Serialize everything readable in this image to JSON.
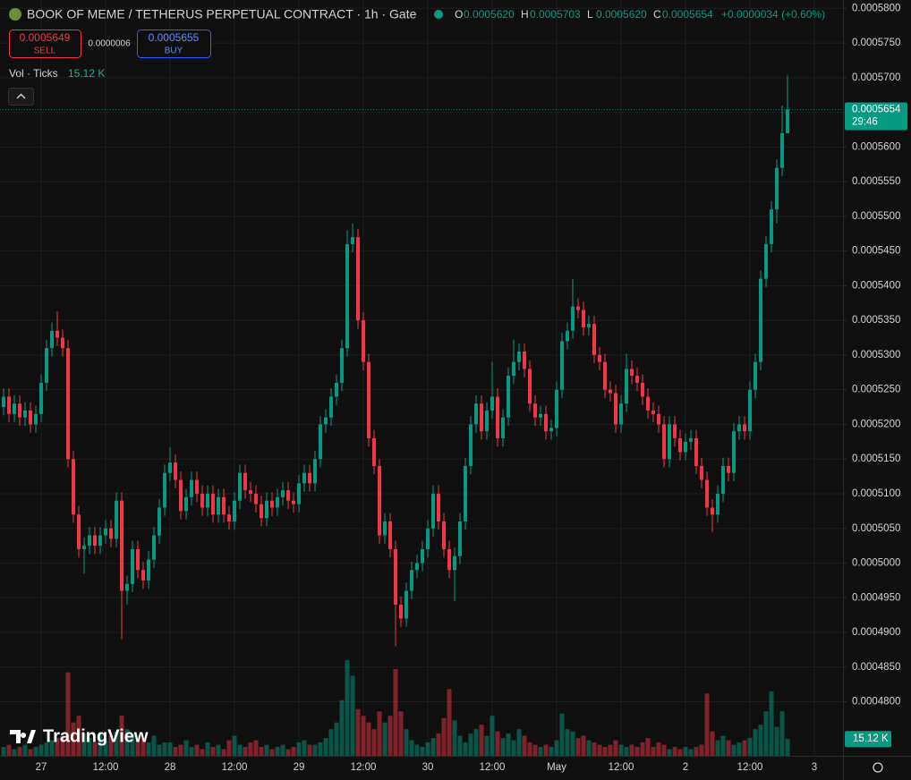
{
  "header": {
    "title": "BOOK OF MEME / TETHERUS PERPETUAL CONTRACT · 1h · Gate",
    "ohlc": [
      {
        "key": "O",
        "value": "0.0005620"
      },
      {
        "key": "H",
        "value": "0.0005703"
      },
      {
        "key": "L",
        "value": "0.0005620"
      },
      {
        "key": "C",
        "value": "0.0005654"
      }
    ],
    "change": "+0.0000034 (+0.60%)"
  },
  "trade_panel": {
    "sell_price": "0.0005649",
    "sell_label": "SELL",
    "spread": "0.0000006",
    "buy_price": "0.0005655",
    "buy_label": "BUY"
  },
  "indicator": {
    "title": "Vol · Ticks",
    "value": "15.12 K"
  },
  "branding": "TradingView",
  "chart_data": {
    "type": "candlestick",
    "up_color": "#089981",
    "down_color": "#f23645",
    "grid": true,
    "ylim": [
      0.0004722,
      0.0005812
    ],
    "yticks": [
      {
        "value": 0.00058,
        "label": "0.0005800"
      },
      {
        "value": 0.000575,
        "label": "0.0005750"
      },
      {
        "value": 0.00057,
        "label": "0.0005700"
      },
      {
        "value": 0.000565,
        "label": "0.0005650"
      },
      {
        "value": 0.00056,
        "label": "0.0005600"
      },
      {
        "value": 0.000555,
        "label": "0.0005550"
      },
      {
        "value": 0.00055,
        "label": "0.0005500"
      },
      {
        "value": 0.000545,
        "label": "0.0005450"
      },
      {
        "value": 0.00054,
        "label": "0.0005400"
      },
      {
        "value": 0.000535,
        "label": "0.0005350"
      },
      {
        "value": 0.00053,
        "label": "0.0005300"
      },
      {
        "value": 0.000525,
        "label": "0.0005250"
      },
      {
        "value": 0.00052,
        "label": "0.0005200"
      },
      {
        "value": 0.000515,
        "label": "0.0005150"
      },
      {
        "value": 0.00051,
        "label": "0.0005100"
      },
      {
        "value": 0.000505,
        "label": "0.0005050"
      },
      {
        "value": 0.0005,
        "label": "0.0005000"
      },
      {
        "value": 0.000495,
        "label": "0.0004950"
      },
      {
        "value": 0.00049,
        "label": "0.0004900"
      },
      {
        "value": 0.000485,
        "label": "0.0004850"
      },
      {
        "value": 0.00048,
        "label": "0.0004800"
      }
    ],
    "x_labels": [
      "27",
      "12:00",
      "28",
      "12:00",
      "29",
      "12:00",
      "30",
      "12:00",
      "May",
      "12:00",
      "2",
      "12:00",
      "3"
    ],
    "last_price_label": "0.0005654",
    "countdown": "29:46",
    "candles": [
      [
        0.0005225,
        0.0005252,
        0.0005213,
        0.000524
      ],
      [
        0.000524,
        0.0005252,
        0.0005203,
        0.0005215
      ],
      [
        0.0005215,
        0.0005242,
        0.0005203,
        0.000523
      ],
      [
        0.000523,
        0.0005242,
        0.0005198,
        0.000521
      ],
      [
        0.000521,
        0.0005232,
        0.0005198,
        0.000522
      ],
      [
        0.000522,
        0.0005232,
        0.0005188,
        0.00052
      ],
      [
        0.00052,
        0.0005227,
        0.0005188,
        0.0005215
      ],
      [
        0.0005215,
        0.0005272,
        0.0005203,
        0.000526
      ],
      [
        0.000526,
        0.0005322,
        0.0005248,
        0.000531
      ],
      [
        0.000531,
        0.0005347,
        0.0005298,
        0.0005335
      ],
      [
        0.0005335,
        0.0005363,
        0.0005313,
        0.0005325
      ],
      [
        0.0005325,
        0.0005337,
        0.0005298,
        0.000531
      ],
      [
        0.000531,
        0.0005322,
        0.0005138,
        0.000515
      ],
      [
        0.000515,
        0.0005162,
        0.0005058,
        0.000507
      ],
      [
        0.000507,
        0.0005082,
        0.0005008,
        0.000502
      ],
      [
        0.000502,
        0.0005037,
        0.0004985,
        0.0005025
      ],
      [
        0.0005025,
        0.0005052,
        0.0005013,
        0.000504
      ],
      [
        0.000504,
        0.0005052,
        0.0005013,
        0.0005025
      ],
      [
        0.0005025,
        0.0005052,
        0.0005013,
        0.000504
      ],
      [
        0.000504,
        0.0005062,
        0.0005028,
        0.000505
      ],
      [
        0.000505,
        0.0005062,
        0.0005023,
        0.0005035
      ],
      [
        0.0005035,
        0.0005102,
        0.0005023,
        0.000509
      ],
      [
        0.000509,
        0.0005102,
        0.000489,
        0.000496
      ],
      [
        0.000496,
        0.0004982,
        0.000494,
        0.000497
      ],
      [
        0.000497,
        0.0005032,
        0.0004958,
        0.000502
      ],
      [
        0.000502,
        0.0005032,
        0.0004978,
        0.000499
      ],
      [
        0.000499,
        0.0005002,
        0.0004963,
        0.0004975
      ],
      [
        0.0004975,
        0.0005017,
        0.0004963,
        0.0005005
      ],
      [
        0.0005005,
        0.0005052,
        0.0004993,
        0.000504
      ],
      [
        0.000504,
        0.0005092,
        0.0005028,
        0.000508
      ],
      [
        0.000508,
        0.0005142,
        0.0005068,
        0.000513
      ],
      [
        0.000513,
        0.0005167,
        0.0005118,
        0.0005145
      ],
      [
        0.0005145,
        0.0005157,
        0.0005108,
        0.000512
      ],
      [
        0.000512,
        0.0005132,
        0.0005063,
        0.0005075
      ],
      [
        0.0005075,
        0.0005107,
        0.0005063,
        0.0005095
      ],
      [
        0.0005095,
        0.0005132,
        0.0005083,
        0.000512
      ],
      [
        0.000512,
        0.0005132,
        0.0005088,
        0.00051
      ],
      [
        0.00051,
        0.0005112,
        0.0005068,
        0.000508
      ],
      [
        0.000508,
        0.0005112,
        0.0005068,
        0.00051
      ],
      [
        0.00051,
        0.0005112,
        0.0005058,
        0.000507
      ],
      [
        0.000507,
        0.0005107,
        0.0005058,
        0.0005095
      ],
      [
        0.0005095,
        0.0005107,
        0.0005058,
        0.000507
      ],
      [
        0.000507,
        0.0005082,
        0.0005048,
        0.000506
      ],
      [
        0.000506,
        0.0005102,
        0.0005048,
        0.000509
      ],
      [
        0.000509,
        0.0005142,
        0.0005078,
        0.000513
      ],
      [
        0.000513,
        0.0005142,
        0.0005093,
        0.0005105
      ],
      [
        0.0005105,
        0.0005117,
        0.0005088,
        0.00051
      ],
      [
        0.00051,
        0.0005112,
        0.0005073,
        0.0005085
      ],
      [
        0.0005085,
        0.0005097,
        0.0005053,
        0.0005065
      ],
      [
        0.0005065,
        0.0005102,
        0.0005053,
        0.000509
      ],
      [
        0.000509,
        0.0005102,
        0.0005068,
        0.000508
      ],
      [
        0.000508,
        0.0005107,
        0.0005068,
        0.0005095
      ],
      [
        0.0005095,
        0.0005117,
        0.0005083,
        0.0005105
      ],
      [
        0.0005105,
        0.0005117,
        0.0005078,
        0.000509
      ],
      [
        0.000509,
        0.0005102,
        0.0005073,
        0.0005085
      ],
      [
        0.0005085,
        0.0005127,
        0.0005073,
        0.0005115
      ],
      [
        0.0005115,
        0.0005142,
        0.0005103,
        0.000513
      ],
      [
        0.000513,
        0.0005142,
        0.0005103,
        0.0005115
      ],
      [
        0.0005115,
        0.0005162,
        0.0005103,
        0.000515
      ],
      [
        0.000515,
        0.0005212,
        0.0005138,
        0.00052
      ],
      [
        0.00052,
        0.0005222,
        0.0005188,
        0.000521
      ],
      [
        0.000521,
        0.0005252,
        0.0005198,
        0.000524
      ],
      [
        0.000524,
        0.0005272,
        0.0005228,
        0.000526
      ],
      [
        0.000526,
        0.0005322,
        0.0005248,
        0.000531
      ],
      [
        0.000531,
        0.000548,
        0.0005298,
        0.000546
      ],
      [
        0.000546,
        0.000549,
        0.0005448,
        0.000547
      ],
      [
        0.000547,
        0.0005482,
        0.0005338,
        0.000535
      ],
      [
        0.000535,
        0.0005362,
        0.0005278,
        0.000529
      ],
      [
        0.000529,
        0.0005302,
        0.0005168,
        0.000518
      ],
      [
        0.000518,
        0.0005192,
        0.0005128,
        0.000514
      ],
      [
        0.000514,
        0.000515,
        0.0005028,
        0.000504
      ],
      [
        0.000504,
        0.0005072,
        0.0005028,
        0.000506
      ],
      [
        0.000506,
        0.0005072,
        0.0005008,
        0.000502
      ],
      [
        0.000502,
        0.0005032,
        0.000488,
        0.000494
      ],
      [
        0.000494,
        0.0004952,
        0.0004908,
        0.000492
      ],
      [
        0.000492,
        0.0004972,
        0.0004908,
        0.000496
      ],
      [
        0.000496,
        0.0005002,
        0.0004948,
        0.000499
      ],
      [
        0.000499,
        0.0005012,
        0.0004978,
        0.0005
      ],
      [
        0.0005,
        0.0005032,
        0.0004988,
        0.000502
      ],
      [
        0.000502,
        0.0005062,
        0.0005008,
        0.000505
      ],
      [
        0.000505,
        0.0005112,
        0.0005038,
        0.00051
      ],
      [
        0.00051,
        0.0005112,
        0.0005048,
        0.000506
      ],
      [
        0.000506,
        0.0005072,
        0.0005008,
        0.000502
      ],
      [
        0.000502,
        0.0005032,
        0.0004978,
        0.000499
      ],
      [
        0.000499,
        0.0005022,
        0.0004945,
        0.000501
      ],
      [
        0.000501,
        0.0005072,
        0.0004998,
        0.000506
      ],
      [
        0.000506,
        0.0005152,
        0.0005048,
        0.000514
      ],
      [
        0.000514,
        0.0005212,
        0.0005128,
        0.00052
      ],
      [
        0.00052,
        0.0005242,
        0.0005188,
        0.000523
      ],
      [
        0.000523,
        0.0005242,
        0.0005178,
        0.000519
      ],
      [
        0.000519,
        0.0005232,
        0.0005178,
        0.000522
      ],
      [
        0.000522,
        0.000529,
        0.0005208,
        0.000524
      ],
      [
        0.000524,
        0.0005252,
        0.0005168,
        0.000518
      ],
      [
        0.000518,
        0.0005222,
        0.0005168,
        0.000521
      ],
      [
        0.000521,
        0.0005282,
        0.0005198,
        0.000527
      ],
      [
        0.000527,
        0.0005322,
        0.0005258,
        0.000529
      ],
      [
        0.000529,
        0.0005317,
        0.0005278,
        0.0005305
      ],
      [
        0.0005305,
        0.0005317,
        0.0005268,
        0.000528
      ],
      [
        0.000528,
        0.0005292,
        0.0005218,
        0.000523
      ],
      [
        0.000523,
        0.0005242,
        0.0005198,
        0.000521
      ],
      [
        0.000521,
        0.0005227,
        0.0005198,
        0.0005215
      ],
      [
        0.0005215,
        0.0005227,
        0.0005178,
        0.000519
      ],
      [
        0.000519,
        0.0005207,
        0.0005178,
        0.0005195
      ],
      [
        0.0005195,
        0.0005262,
        0.0005183,
        0.000525
      ],
      [
        0.000525,
        0.0005332,
        0.0005238,
        0.000532
      ],
      [
        0.000532,
        0.0005347,
        0.0005308,
        0.0005335
      ],
      [
        0.0005335,
        0.000541,
        0.0005323,
        0.000537
      ],
      [
        0.000537,
        0.0005382,
        0.0005353,
        0.0005365
      ],
      [
        0.0005365,
        0.0005377,
        0.0005328,
        0.000534
      ],
      [
        0.000534,
        0.0005357,
        0.0005328,
        0.0005345
      ],
      [
        0.0005345,
        0.0005357,
        0.0005288,
        0.00053
      ],
      [
        0.00053,
        0.0005312,
        0.0005278,
        0.000529
      ],
      [
        0.000529,
        0.0005302,
        0.0005238,
        0.000525
      ],
      [
        0.000525,
        0.0005262,
        0.0005233,
        0.0005245
      ],
      [
        0.0005245,
        0.0005257,
        0.0005188,
        0.00052
      ],
      [
        0.00052,
        0.0005242,
        0.0005188,
        0.000523
      ],
      [
        0.000523,
        0.0005302,
        0.0005218,
        0.000528
      ],
      [
        0.000528,
        0.0005292,
        0.0005258,
        0.000527
      ],
      [
        0.000527,
        0.0005282,
        0.0005248,
        0.000526
      ],
      [
        0.000526,
        0.0005272,
        0.0005228,
        0.000524
      ],
      [
        0.000524,
        0.0005252,
        0.0005208,
        0.000522
      ],
      [
        0.000522,
        0.0005232,
        0.0005203,
        0.0005215
      ],
      [
        0.0005215,
        0.0005227,
        0.0005188,
        0.00052
      ],
      [
        0.00052,
        0.0005212,
        0.0005138,
        0.000515
      ],
      [
        0.000515,
        0.0005212,
        0.0005138,
        0.00052
      ],
      [
        0.00052,
        0.0005212,
        0.0005168,
        0.000518
      ],
      [
        0.000518,
        0.0005192,
        0.0005148,
        0.000516
      ],
      [
        0.000516,
        0.0005187,
        0.0005148,
        0.0005175
      ],
      [
        0.0005175,
        0.0005192,
        0.0005163,
        0.000518
      ],
      [
        0.000518,
        0.0005192,
        0.0005128,
        0.000514
      ],
      [
        0.000514,
        0.0005152,
        0.0005108,
        0.000512
      ],
      [
        0.000512,
        0.0005132,
        0.0005068,
        0.000508
      ],
      [
        0.000508,
        0.0005092,
        0.0005045,
        0.000507
      ],
      [
        0.000507,
        0.0005112,
        0.0005058,
        0.00051
      ],
      [
        0.00051,
        0.0005152,
        0.0005088,
        0.000514
      ],
      [
        0.000514,
        0.0005152,
        0.0005118,
        0.000513
      ],
      [
        0.000513,
        0.0005202,
        0.0005118,
        0.000519
      ],
      [
        0.000519,
        0.0005212,
        0.0005178,
        0.00052
      ],
      [
        0.00052,
        0.0005212,
        0.0005178,
        0.000519
      ],
      [
        0.000519,
        0.0005262,
        0.0005178,
        0.000525
      ],
      [
        0.000525,
        0.0005302,
        0.0005238,
        0.000529
      ],
      [
        0.000529,
        0.0005422,
        0.0005278,
        0.000541
      ],
      [
        0.000541,
        0.0005472,
        0.0005398,
        0.000546
      ],
      [
        0.000546,
        0.0005522,
        0.0005448,
        0.000551
      ],
      [
        0.000551,
        0.0005582,
        0.000549,
        0.000557
      ],
      [
        0.000557,
        0.000566,
        0.0005558,
        0.000562
      ],
      [
        0.000562,
        0.0005703,
        0.000562,
        0.0005654
      ]
    ],
    "volume": {
      "last_label": "15.12 K",
      "values": [
        8000,
        10000,
        6000,
        8000,
        10000,
        6000,
        8000,
        10000,
        12000,
        14000,
        16000,
        18000,
        75000,
        30000,
        36000,
        20000,
        16000,
        12000,
        20000,
        14000,
        18000,
        22000,
        36000,
        24000,
        20000,
        14000,
        16000,
        12000,
        18000,
        10000,
        12000,
        12000,
        8000,
        10000,
        14000,
        8000,
        10000,
        6000,
        12000,
        8000,
        10000,
        6000,
        14000,
        18000,
        10000,
        8000,
        12000,
        14000,
        8000,
        10000,
        6000,
        8000,
        10000,
        6000,
        8000,
        12000,
        14000,
        10000,
        10000,
        12000,
        16000,
        24000,
        30000,
        50000,
        86000,
        72000,
        42000,
        36000,
        30000,
        24000,
        40000,
        30000,
        36000,
        78000,
        40000,
        24000,
        14000,
        10000,
        8000,
        12000,
        16000,
        20000,
        34000,
        60000,
        32000,
        18000,
        12000,
        20000,
        24000,
        28000,
        18000,
        36000,
        22000,
        16000,
        20000,
        14000,
        24000,
        18000,
        12000,
        10000,
        8000,
        10000,
        8000,
        14000,
        38000,
        24000,
        22000,
        16000,
        18000,
        14000,
        12000,
        10000,
        8000,
        10000,
        14000,
        10000,
        8000,
        10000,
        8000,
        12000,
        16000,
        8000,
        12000,
        10000,
        6000,
        8000,
        6000,
        8000,
        6000,
        8000,
        10000,
        56000,
        22000,
        14000,
        18000,
        14000,
        10000,
        12000,
        14000,
        16000,
        24000,
        28000,
        40000,
        58000,
        26000,
        40000,
        15120
      ]
    }
  }
}
